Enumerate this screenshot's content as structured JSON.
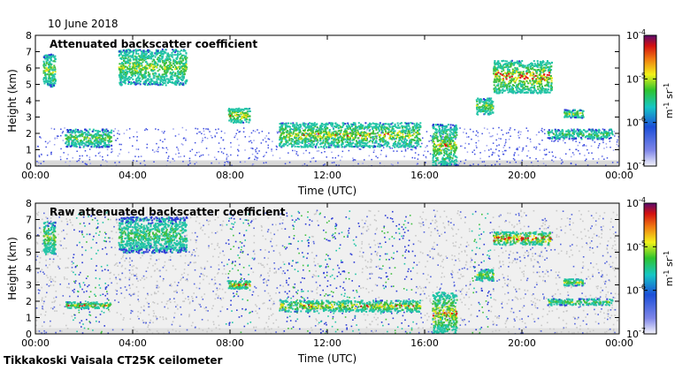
{
  "header": {
    "date": "10 June 2018"
  },
  "footer": {
    "caption": "Tikkakoski Vaisala CT25K ceilometer"
  },
  "colors": {
    "noise": "#d9d9d9",
    "low": "#2b3bd6",
    "mid": "#22c4a6",
    "high": "#e4e415",
    "peak": "#e01010"
  },
  "chart_data": [
    {
      "type": "heatmap",
      "title": "Attenuated backscatter coefficient",
      "xlabel": "Time (UTC)",
      "ylabel": "Height (km)",
      "xticks": [
        "00:00",
        "04:00",
        "08:00",
        "12:00",
        "16:00",
        "20:00",
        "00:00"
      ],
      "yticks": [
        "0",
        "1",
        "2",
        "3",
        "4",
        "5",
        "6",
        "7",
        "8"
      ],
      "xlim_hours": [
        0,
        24
      ],
      "ylim_km": [
        0,
        8
      ],
      "colorbar": {
        "scale": "log",
        "range": [
          1e-07,
          0.0001
        ],
        "ticks": [
          "10",
          "10",
          "10",
          "10"
        ],
        "tick_exponents": [
          "-7",
          "-6",
          "-5",
          "-4"
        ],
        "label": "m",
        "label_exp1": "-1",
        "label_mid": " sr",
        "label_exp2": "-1"
      },
      "noise": false,
      "layers": [
        {
          "t0": 0.3,
          "t1": 0.8,
          "h0": 4.9,
          "h1": 6.9,
          "strength": 0.7
        },
        {
          "t0": 1.2,
          "t1": 3.1,
          "h0": 1.2,
          "h1": 2.3,
          "strength": 0.65
        },
        {
          "t0": 3.4,
          "t1": 6.2,
          "h0": 5.0,
          "h1": 7.2,
          "strength": 0.7
        },
        {
          "t0": 7.9,
          "t1": 8.8,
          "h0": 2.7,
          "h1": 3.6,
          "strength": 0.8
        },
        {
          "t0": 10.0,
          "t1": 15.8,
          "h0": 1.2,
          "h1": 2.7,
          "strength": 0.75
        },
        {
          "t0": 16.3,
          "t1": 17.3,
          "h0": 0.0,
          "h1": 2.6,
          "strength": 0.75
        },
        {
          "t0": 18.1,
          "t1": 18.8,
          "h0": 3.2,
          "h1": 4.2,
          "strength": 0.7
        },
        {
          "t0": 18.8,
          "t1": 21.2,
          "h0": 4.5,
          "h1": 6.5,
          "strength": 0.85
        },
        {
          "t0": 21.0,
          "t1": 23.7,
          "h0": 1.7,
          "h1": 2.3,
          "strength": 0.6
        },
        {
          "t0": 21.7,
          "t1": 22.5,
          "h0": 3.0,
          "h1": 3.5,
          "strength": 0.7
        }
      ]
    },
    {
      "type": "heatmap",
      "title": "Raw attenuated backscatter coefficient",
      "xlabel": "Time (UTC)",
      "ylabel": "Height (km)",
      "xticks": [
        "00:00",
        "04:00",
        "08:00",
        "12:00",
        "16:00",
        "20:00",
        "00:00"
      ],
      "yticks": [
        "0",
        "1",
        "2",
        "3",
        "4",
        "5",
        "6",
        "7",
        "8"
      ],
      "xlim_hours": [
        0,
        24
      ],
      "ylim_km": [
        0,
        8
      ],
      "colorbar": {
        "scale": "log",
        "range": [
          1e-07,
          0.0001
        ],
        "ticks": [
          "10",
          "10",
          "10",
          "10"
        ],
        "tick_exponents": [
          "-7",
          "-6",
          "-5",
          "-4"
        ],
        "label": "m",
        "label_exp1": "-1",
        "label_mid": " sr",
        "label_exp2": "-1"
      },
      "noise": true,
      "layers": [
        {
          "t0": 0.3,
          "t1": 0.8,
          "h0": 4.9,
          "h1": 6.9,
          "strength": 0.7
        },
        {
          "t0": 1.2,
          "t1": 3.1,
          "h0": 1.6,
          "h1": 2.0,
          "strength": 0.8
        },
        {
          "t0": 3.4,
          "t1": 6.2,
          "h0": 5.0,
          "h1": 7.2,
          "strength": 0.6
        },
        {
          "t0": 7.9,
          "t1": 8.8,
          "h0": 2.8,
          "h1": 3.3,
          "strength": 0.85
        },
        {
          "t0": 10.0,
          "t1": 15.8,
          "h0": 1.4,
          "h1": 2.1,
          "strength": 0.8
        },
        {
          "t0": 16.3,
          "t1": 17.3,
          "h0": 0.0,
          "h1": 2.6,
          "strength": 0.8
        },
        {
          "t0": 18.1,
          "t1": 18.8,
          "h0": 3.3,
          "h1": 4.0,
          "strength": 0.7
        },
        {
          "t0": 18.8,
          "t1": 21.2,
          "h0": 5.5,
          "h1": 6.3,
          "strength": 0.9
        },
        {
          "t0": 21.0,
          "t1": 23.7,
          "h0": 1.8,
          "h1": 2.2,
          "strength": 0.65
        },
        {
          "t0": 21.7,
          "t1": 22.5,
          "h0": 3.0,
          "h1": 3.4,
          "strength": 0.7
        }
      ]
    }
  ]
}
